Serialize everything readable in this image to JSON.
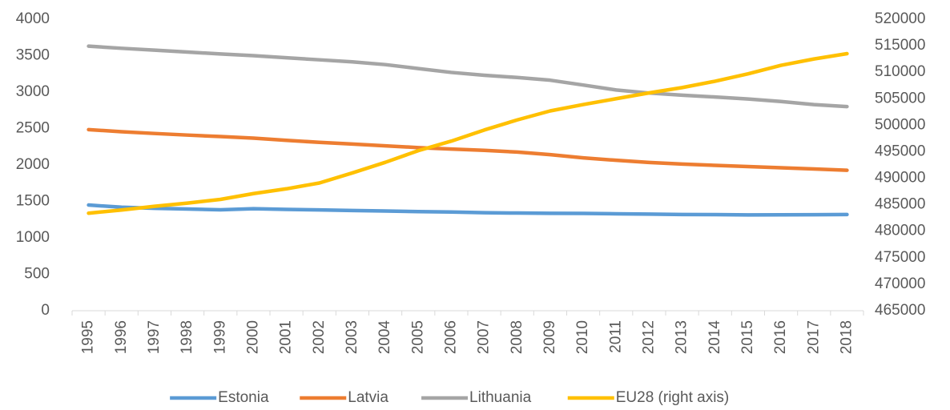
{
  "chart_data": {
    "type": "line",
    "categories": [
      "1995",
      "1996",
      "1997",
      "1998",
      "1999",
      "2000",
      "2001",
      "2002",
      "2003",
      "2004",
      "2005",
      "2006",
      "2007",
      "2008",
      "2009",
      "2010",
      "2011",
      "2012",
      "2013",
      "2014",
      "2015",
      "2016",
      "2017",
      "2018"
    ],
    "series": [
      {
        "name": "Estonia",
        "color": "#5b9bd5",
        "values": [
          1450,
          1420,
          1405,
          1395,
          1385,
          1400,
          1390,
          1383,
          1375,
          1368,
          1360,
          1355,
          1345,
          1340,
          1337,
          1335,
          1330,
          1325,
          1320,
          1318,
          1315,
          1316,
          1317,
          1320
        ]
      },
      {
        "name": "Latvia",
        "color": "#ed7d31",
        "values": [
          2485,
          2456,
          2432,
          2410,
          2390,
          2368,
          2338,
          2310,
          2287,
          2263,
          2238,
          2218,
          2200,
          2177,
          2141,
          2098,
          2064,
          2034,
          2013,
          1994,
          1978,
          1962,
          1945,
          1927
        ]
      },
      {
        "name": "Lithuania",
        "color": "#a5a5a5",
        "values": [
          3630,
          3601,
          3575,
          3549,
          3524,
          3500,
          3471,
          3443,
          3415,
          3377,
          3323,
          3270,
          3231,
          3200,
          3163,
          3097,
          3029,
          2987,
          2957,
          2933,
          2905,
          2871,
          2828,
          2801
        ]
      },
      {
        "name": "EU28 (right axis)",
        "color": "#ffc000",
        "axis": "y2",
        "values": [
          483400,
          484000,
          484700,
          485300,
          486000,
          487100,
          488000,
          489100,
          491000,
          493000,
          495200,
          497000,
          499100,
          501000,
          502700,
          503900,
          505000,
          506100,
          507100,
          508300,
          509700,
          511300,
          512500,
          513500
        ]
      }
    ],
    "ylim": [
      0,
      4000
    ],
    "yticks": [
      0,
      500,
      1000,
      1500,
      2000,
      2500,
      3000,
      3500,
      4000
    ],
    "y2lim": [
      465000,
      520000
    ],
    "y2ticks": [
      465000,
      470000,
      475000,
      480000,
      485000,
      490000,
      495000,
      500000,
      505000,
      510000,
      515000,
      520000
    ],
    "legend": "bottom"
  }
}
